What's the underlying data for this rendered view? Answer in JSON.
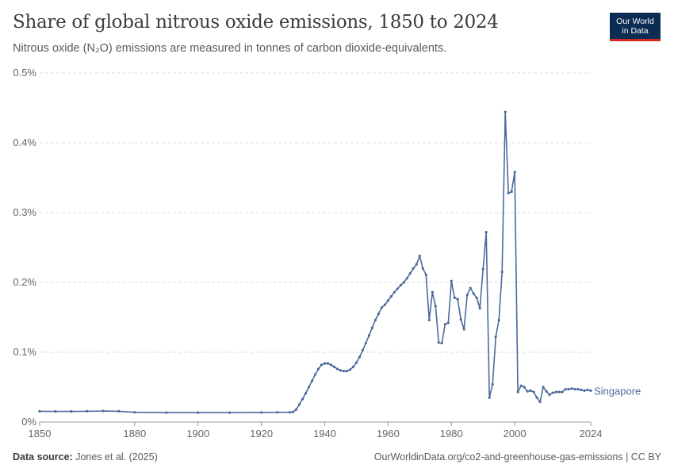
{
  "header": {
    "title": "Share of global nitrous oxide emissions, 1850 to 2024",
    "subtitle": "Nitrous oxide (N₂O) emissions are measured in tonnes of carbon dioxide-equivalents."
  },
  "logo": {
    "line1": "Our World",
    "line2": "in Data"
  },
  "footer": {
    "source_label": "Data source:",
    "source_value": "Jones et al. (2025)",
    "right_text": "OurWorldinData.org/co2-and-greenhouse-gas-emissions | CC BY"
  },
  "colors": {
    "series": "#4c6a9c",
    "grid": "#dddddd",
    "axis": "#999999"
  },
  "chart_data": {
    "type": "line",
    "title": "Share of global nitrous oxide emissions, 1850 to 2024",
    "xlabel": "",
    "ylabel": "",
    "xlim": [
      1850,
      2024
    ],
    "ylim": [
      0,
      0.5
    ],
    "y_unit": "%",
    "x_ticks": [
      1850,
      1880,
      1900,
      1920,
      1940,
      1960,
      1980,
      2000,
      2024
    ],
    "y_ticks": [
      0,
      0.1,
      0.2,
      0.3,
      0.4,
      0.5
    ],
    "y_tick_labels": [
      "0%",
      "0.1%",
      "0.2%",
      "0.3%",
      "0.4%",
      "0.5%"
    ],
    "grid": true,
    "series": [
      {
        "name": "Singapore",
        "x": [
          1850,
          1855,
          1860,
          1865,
          1870,
          1875,
          1880,
          1890,
          1900,
          1910,
          1920,
          1925,
          1929,
          1930,
          1931,
          1932,
          1933,
          1934,
          1935,
          1936,
          1937,
          1938,
          1939,
          1940,
          1941,
          1942,
          1943,
          1944,
          1945,
          1946,
          1947,
          1948,
          1949,
          1950,
          1951,
          1952,
          1953,
          1954,
          1955,
          1956,
          1957,
          1958,
          1959,
          1960,
          1961,
          1962,
          1963,
          1964,
          1965,
          1966,
          1967,
          1968,
          1969,
          1970,
          1971,
          1972,
          1973,
          1974,
          1975,
          1976,
          1977,
          1978,
          1979,
          1980,
          1981,
          1982,
          1983,
          1984,
          1985,
          1986,
          1987,
          1988,
          1989,
          1990,
          1991,
          1992,
          1993,
          1994,
          1995,
          1996,
          1997,
          1998,
          1999,
          2000,
          2001,
          2002,
          2003,
          2004,
          2005,
          2006,
          2007,
          2008,
          2009,
          2010,
          2011,
          2012,
          2013,
          2014,
          2015,
          2016,
          2017,
          2018,
          2019,
          2020,
          2021,
          2022,
          2023,
          2024
        ],
        "y": [
          0.0155,
          0.0152,
          0.0152,
          0.0155,
          0.0158,
          0.0155,
          0.014,
          0.0135,
          0.0135,
          0.0135,
          0.0138,
          0.014,
          0.014,
          0.0145,
          0.018,
          0.025,
          0.033,
          0.041,
          0.05,
          0.059,
          0.068,
          0.076,
          0.082,
          0.084,
          0.084,
          0.082,
          0.079,
          0.076,
          0.074,
          0.073,
          0.073,
          0.075,
          0.079,
          0.085,
          0.093,
          0.103,
          0.113,
          0.124,
          0.135,
          0.146,
          0.155,
          0.164,
          0.168,
          0.174,
          0.18,
          0.186,
          0.191,
          0.196,
          0.2,
          0.206,
          0.213,
          0.22,
          0.226,
          0.238,
          0.22,
          0.211,
          0.146,
          0.186,
          0.166,
          0.114,
          0.113,
          0.14,
          0.142,
          0.202,
          0.178,
          0.176,
          0.147,
          0.133,
          0.182,
          0.192,
          0.184,
          0.178,
          0.163,
          0.219,
          0.272,
          0.035,
          0.054,
          0.122,
          0.146,
          0.215,
          0.444,
          0.328,
          0.33,
          0.358,
          0.043,
          0.052,
          0.05,
          0.044,
          0.045,
          0.043,
          0.035,
          0.029,
          0.05,
          0.044,
          0.039,
          0.042,
          0.043,
          0.043,
          0.043,
          0.047,
          0.047,
          0.048,
          0.047,
          0.047,
          0.046,
          0.045,
          0.046,
          0.045
        ]
      }
    ]
  }
}
